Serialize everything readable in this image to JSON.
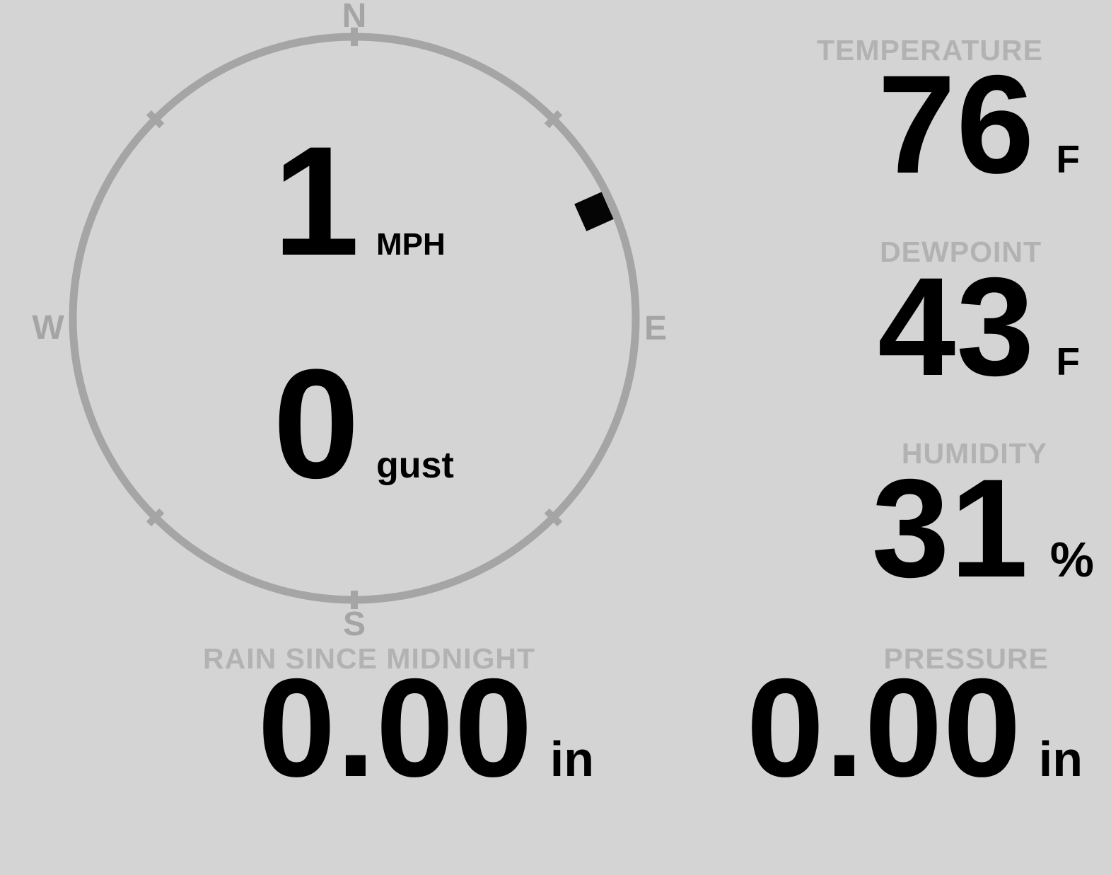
{
  "app": {
    "title": "Weather Station Console"
  },
  "colors": {
    "background": "#d4d4d4",
    "ring_gray": "#a5a5a5",
    "label_gray": "#b2b2b2",
    "value_black": "#050505"
  },
  "compass": {
    "cardinals": {
      "n": "N",
      "e": "E",
      "s": "S",
      "w": "W"
    },
    "wind_speed": {
      "value": "1",
      "unit": "MPH"
    },
    "wind_gust": {
      "value": "0",
      "unit": "gust"
    },
    "direction_deg": 66,
    "tick_angles": [
      0,
      45,
      135,
      180,
      225,
      315
    ]
  },
  "readings": {
    "temperature": {
      "label": "TEMPERATURE",
      "value": "76",
      "unit": "F"
    },
    "dewpoint": {
      "label": "DEWPOINT",
      "value": "43",
      "unit": "F"
    },
    "humidity": {
      "label": "HUMIDITY",
      "value": "31",
      "unit": "%"
    },
    "rain_since_midnight": {
      "label": "RAIN SINCE MIDNIGHT",
      "value": "0.00",
      "unit": "in"
    },
    "pressure": {
      "label": "PRESSURE",
      "value": "0.00",
      "unit": "in"
    }
  }
}
